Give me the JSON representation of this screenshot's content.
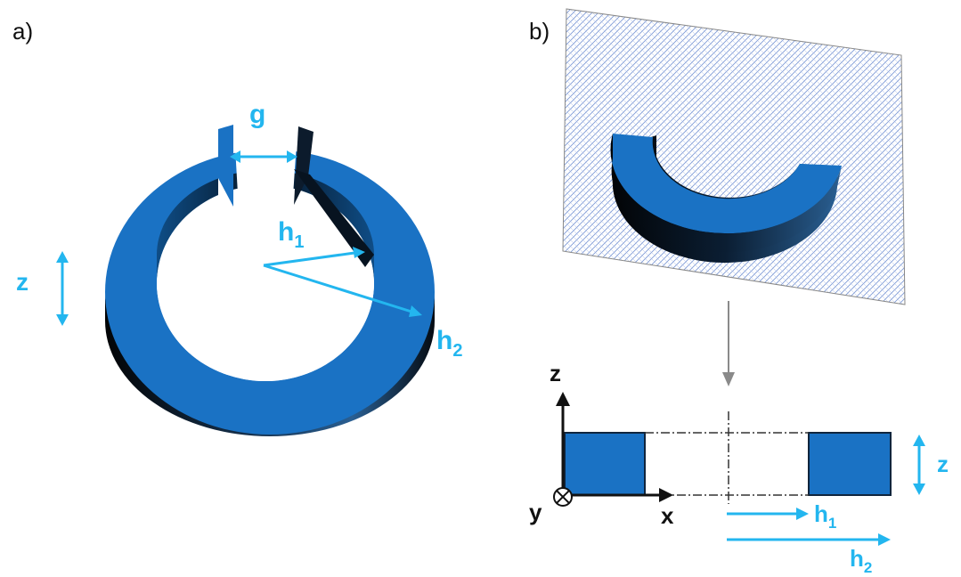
{
  "panels": {
    "a": {
      "label": "a)",
      "dimension_labels": {
        "gap": "g",
        "inner_radius": "h",
        "inner_sub": "1",
        "outer_radius": "h",
        "outer_sub": "2",
        "height": "z"
      }
    },
    "b": {
      "label": "b)",
      "axes": {
        "x": "x",
        "y": "y",
        "z": "z"
      },
      "dimension_labels": {
        "inner_radius": "h",
        "inner_sub": "1",
        "outer_radius": "h",
        "outer_sub": "2",
        "height": "z"
      }
    }
  },
  "colors": {
    "ring_face": "#1a72c4",
    "ring_side_dark": "#0a1a2e",
    "dimension": "#23b6ef",
    "plane_hatch": "#6a8fd0",
    "axis": "#111111"
  },
  "icons": {
    "y_axis_into_page": "circle-cross-icon"
  }
}
